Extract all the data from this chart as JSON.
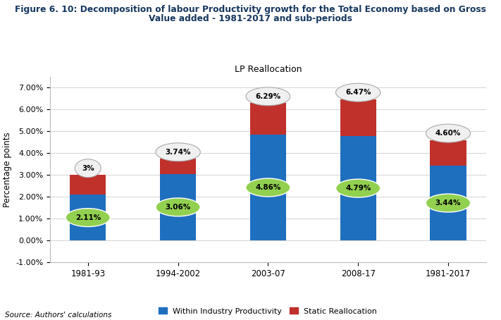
{
  "title_line1": "Figure 6. 10: Decomposition of labour Productivity growth for the Total Economy based on Gross",
  "title_line2": "Value added - 1981-2017 and sub-periods",
  "chart_title": "LP Reallocation",
  "categories": [
    "1981-93",
    "1994-2002",
    "2003-07",
    "2008-17",
    "1981-2017"
  ],
  "within_industry": [
    2.11,
    3.06,
    4.86,
    4.79,
    3.44
  ],
  "static_reallocation": [
    0.89,
    0.68,
    1.43,
    1.68,
    1.16
  ],
  "totals": [
    "3%",
    "3.74%",
    "6.29%",
    "6.47%",
    "4.60%"
  ],
  "total_values": [
    3.0,
    3.74,
    6.29,
    6.47,
    4.6
  ],
  "within_labels": [
    "2.11%",
    "3.06%",
    "4.86%",
    "4.79%",
    "3.44%"
  ],
  "bar_color_blue": "#1F6FBF",
  "bar_color_red": "#C0312B",
  "label_color_green": "#92D050",
  "label_color_white": "#F0F0F0",
  "ylim": [
    -1.0,
    7.5
  ],
  "yticks": [
    -1.0,
    0.0,
    1.0,
    2.0,
    3.0,
    4.0,
    5.0,
    6.0,
    7.0
  ],
  "ytick_labels": [
    "-1.00%",
    "0.00%",
    "1.00%",
    "2.00%",
    "3.00%",
    "4.00%",
    "5.00%",
    "6.00%",
    "7.00%"
  ],
  "ylabel": "Percentage points",
  "legend_blue": "Within Industry Productivity",
  "legend_red": "Static Reallocation",
  "source": "Source: Authors' calculations",
  "background_color": "#FFFFFF",
  "plot_bg_color": "#FFFFFF",
  "grid_color": "#CCCCCC",
  "bar_width": 0.4,
  "title_color": "#17375E"
}
